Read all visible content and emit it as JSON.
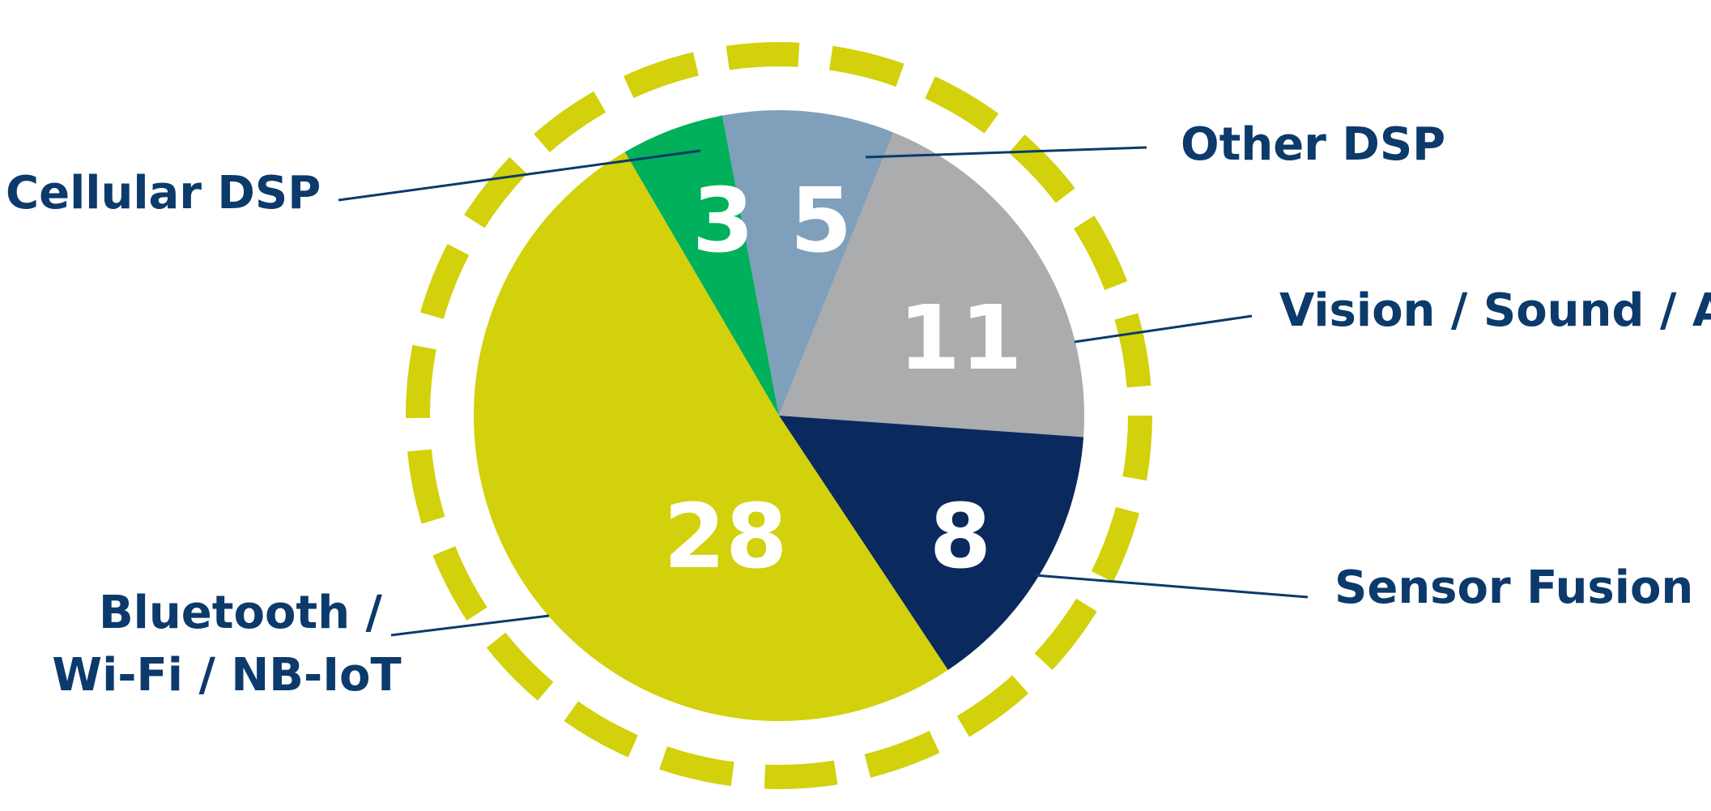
{
  "chart_data": {
    "type": "pie",
    "title": "",
    "slices": [
      {
        "label": "Cellular DSP",
        "value": 3,
        "color": "#00b05a",
        "text_color": "#ffffff"
      },
      {
        "label": "Other DSP",
        "value": 5,
        "color": "#809fbb",
        "text_color": "#ffffff"
      },
      {
        "label": "Vision / Sound / AI",
        "value": 11,
        "color": "#abacae",
        "text_color": "#ffffff"
      },
      {
        "label": "Sensor Fusion",
        "value": 8,
        "color": "#0a2a5e",
        "text_color": "#ffffff"
      },
      {
        "label": "Bluetooth / Wi-Fi / NB-IoT",
        "value": 28,
        "color": "#d2d10b",
        "text_color": "#ffffff"
      }
    ],
    "decoration": {
      "dashed_ring_color": "#d2d10b",
      "callout_line_color": "#0b3a6b"
    }
  }
}
